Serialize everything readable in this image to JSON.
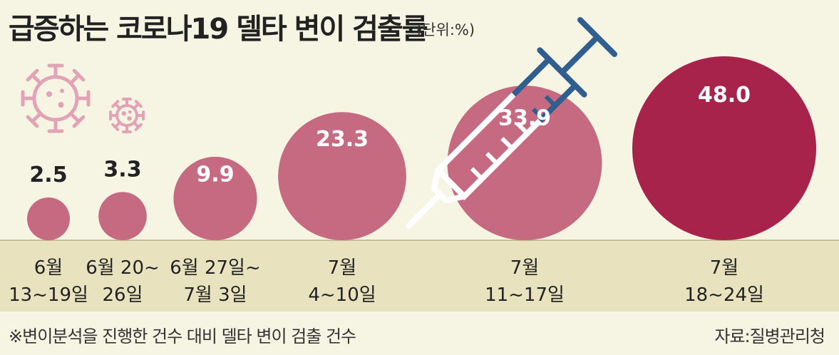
{
  "title": "급증하는 코로나19 델타 변이 검출률",
  "unit": "(단위:%)",
  "footnote": "※변이분석을 진행한 건수 대비 델타 변이 검출 건수",
  "source": "자료:질병관리청",
  "colors": {
    "background": "#f6f4e3",
    "axis_band": "#e9e2bf",
    "bubble": "#c66a82",
    "bubble_highlight": "#a8234b",
    "virus_icon": "#e3a3b7",
    "syringe_dark": "#2f5e8f",
    "syringe_light": "#ffffff",
    "label_dark": "#222222",
    "label_light": "#ffffff"
  },
  "icons": [
    "virus-icon",
    "syringe-icon"
  ],
  "chart_data": {
    "type": "bubble",
    "categories": [
      [
        "6월",
        "13~19일"
      ],
      [
        "6월 20~",
        "26일"
      ],
      [
        "6월 27일~",
        "7월 3일"
      ],
      [
        "7월",
        "4~10일"
      ],
      [
        "7월",
        "11~17일"
      ],
      [
        "7월",
        "18~24일"
      ]
    ],
    "values": [
      2.5,
      3.3,
      9.9,
      23.3,
      33.9,
      48.0
    ],
    "value_labels": [
      "2.5",
      "3.3",
      "9.9",
      "23.3",
      "33.9",
      "48.0"
    ],
    "highlight_index": 5
  }
}
